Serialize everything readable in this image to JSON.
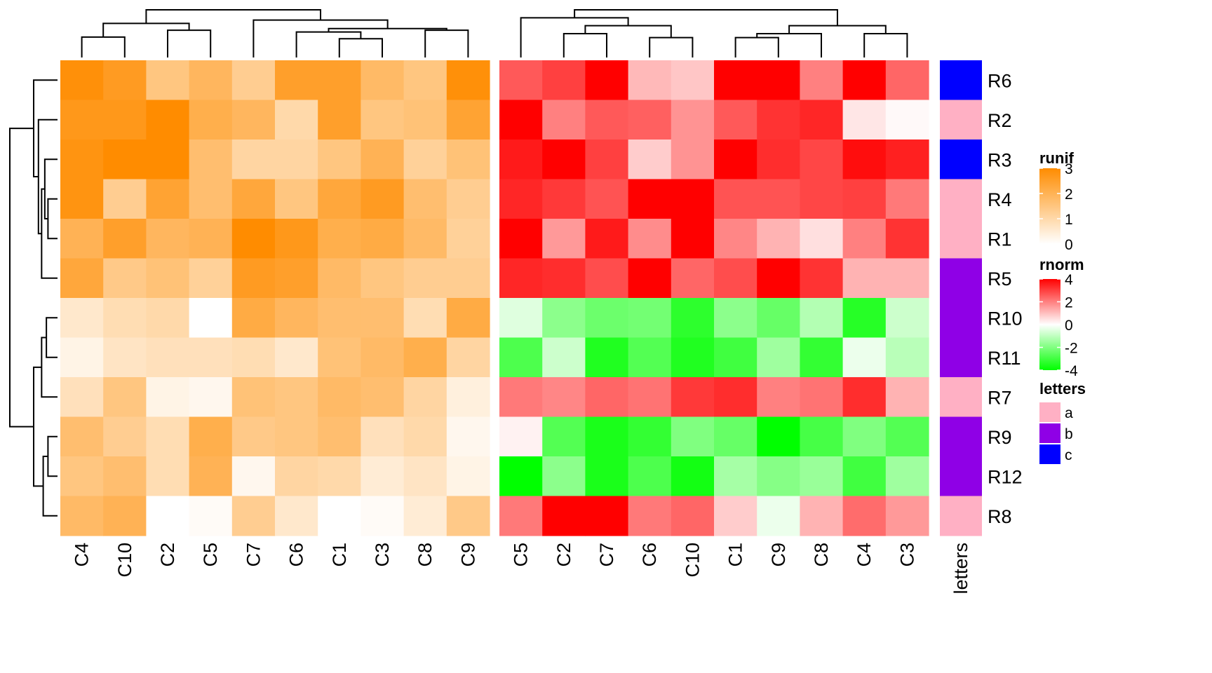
{
  "chart_data": {
    "type": "heatmap",
    "rows": [
      "R6",
      "R2",
      "R3",
      "R4",
      "R1",
      "R5",
      "R10",
      "R11",
      "R7",
      "R9",
      "R12",
      "R8"
    ],
    "heatmaps": [
      {
        "name": "runif",
        "columns": [
          "C4",
          "C10",
          "C2",
          "C5",
          "C7",
          "C6",
          "C1",
          "C3",
          "C8",
          "C9"
        ],
        "values": [
          [
            2.9,
            2.6,
            1.5,
            1.9,
            1.3,
            2.5,
            2.5,
            1.8,
            1.5,
            2.9
          ],
          [
            2.7,
            2.7,
            3.0,
            2.1,
            1.9,
            1.0,
            2.5,
            1.5,
            1.6,
            2.4
          ],
          [
            2.8,
            3.0,
            3.0,
            1.7,
            1.1,
            1.1,
            1.5,
            2.0,
            1.2,
            1.6
          ],
          [
            2.8,
            1.3,
            2.4,
            1.7,
            2.3,
            1.5,
            2.3,
            2.6,
            1.7,
            1.3
          ],
          [
            2.0,
            2.5,
            1.9,
            2.0,
            3.0,
            2.7,
            2.1,
            2.2,
            1.8,
            1.2
          ],
          [
            2.3,
            1.4,
            1.6,
            1.2,
            2.6,
            2.5,
            1.8,
            1.5,
            1.3,
            1.3
          ],
          [
            0.6,
            0.9,
            1.0,
            0.0,
            2.2,
            1.9,
            1.7,
            1.7,
            0.9,
            2.2
          ],
          [
            0.3,
            0.7,
            0.8,
            0.8,
            0.9,
            0.6,
            1.6,
            1.8,
            2.1,
            1.1
          ],
          [
            0.8,
            1.5,
            0.3,
            0.2,
            1.6,
            1.5,
            1.8,
            1.7,
            1.1,
            0.4
          ],
          [
            1.7,
            1.3,
            0.9,
            2.1,
            1.4,
            1.5,
            1.7,
            0.8,
            1.0,
            0.2
          ],
          [
            1.5,
            1.7,
            0.9,
            2.0,
            0.2,
            1.1,
            1.0,
            0.5,
            0.7,
            0.3
          ],
          [
            1.8,
            2.0,
            0.0,
            0.1,
            1.3,
            0.6,
            0.0,
            0.1,
            0.5,
            1.4
          ]
        ],
        "legend_ticks": [
          0,
          1,
          2,
          3
        ],
        "range": [
          0,
          3
        ],
        "colors": [
          "#ffffff",
          "#ff8c00"
        ]
      },
      {
        "name": "rnorm",
        "columns": [
          "C5",
          "C2",
          "C7",
          "C6",
          "C10",
          "C1",
          "C9",
          "C8",
          "C4",
          "C3"
        ],
        "values": [
          [
            2.6,
            3.0,
            4.0,
            1.1,
            0.9,
            4.0,
            4.0,
            2.0,
            4.0,
            2.4
          ],
          [
            4.0,
            2.0,
            2.6,
            2.5,
            1.7,
            2.6,
            3.2,
            3.4,
            0.4,
            0.1
          ],
          [
            3.6,
            4.0,
            3.0,
            0.8,
            1.7,
            4.0,
            3.3,
            2.9,
            3.8,
            3.5
          ],
          [
            3.4,
            3.1,
            2.7,
            4.0,
            4.0,
            2.7,
            2.7,
            2.9,
            3.0,
            2.1
          ],
          [
            4.0,
            1.6,
            3.6,
            1.8,
            4.0,
            1.9,
            1.2,
            0.5,
            2.0,
            3.2
          ],
          [
            3.4,
            3.3,
            2.8,
            4.0,
            2.4,
            2.8,
            4.0,
            3.2,
            1.2,
            1.2
          ],
          [
            -0.5,
            -1.8,
            -2.3,
            -2.2,
            -3.3,
            -1.8,
            -2.4,
            -1.2,
            -3.4,
            -0.8
          ],
          [
            -2.8,
            -0.8,
            -3.5,
            -2.7,
            -3.5,
            -3.0,
            -1.5,
            -3.2,
            -0.3,
            -1.1
          ],
          [
            2.1,
            1.9,
            2.4,
            2.2,
            3.1,
            3.3,
            2.0,
            2.2,
            3.3,
            1.2
          ],
          [
            0.2,
            -2.7,
            -3.6,
            -3.2,
            -2.0,
            -2.4,
            -4.0,
            -2.9,
            -2.0,
            -2.7
          ],
          [
            -4.0,
            -1.8,
            -3.6,
            -2.8,
            -3.7,
            -1.4,
            -1.9,
            -1.6,
            -3.0,
            -1.5
          ],
          [
            2.1,
            4.0,
            4.0,
            2.1,
            2.4,
            0.8,
            -0.3,
            1.2,
            2.3,
            1.6
          ]
        ],
        "legend_ticks": [
          4,
          2,
          0,
          -2,
          -4
        ],
        "range": [
          -4,
          4
        ],
        "colors": [
          "#00ff00",
          "#ffffff",
          "#ff0000"
        ]
      }
    ],
    "annotation": {
      "name": "letters",
      "values": [
        "c",
        "a",
        "c",
        "a",
        "a",
        "b",
        "b",
        "b",
        "a",
        "b",
        "b",
        "a"
      ],
      "levels": [
        "a",
        "b",
        "c"
      ],
      "colors": {
        "a": "#ffb0c4",
        "b": "#8f00e6",
        "c": "#0000ff"
      }
    },
    "legends": [
      "runif",
      "rnorm",
      "letters"
    ],
    "legend_placement": "right",
    "row_dendrogram": "left",
    "column_dendrogram": "top"
  }
}
